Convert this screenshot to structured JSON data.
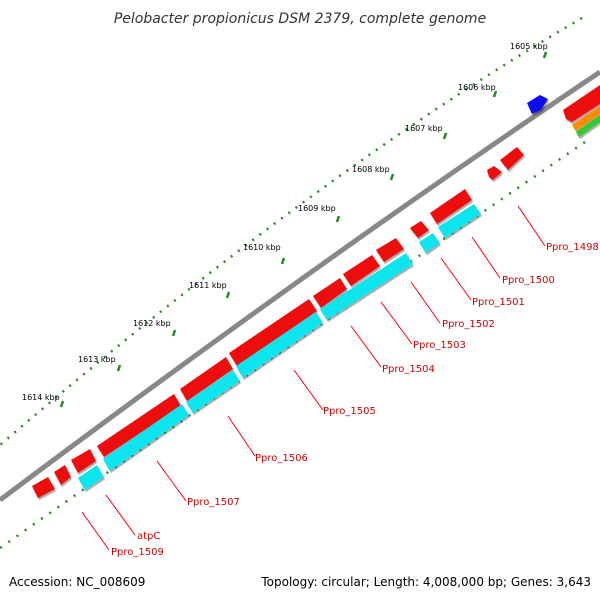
{
  "title": "Pelobacter propionicus DSM 2379, complete genome",
  "footer": {
    "accession": "Accession: NC_008609",
    "summary": "Topology: circular; Length: 4,008,000 bp; Genes: 3,643"
  },
  "ticks": [
    "1605 kbp",
    "1606 kbp",
    "1607 kbp",
    "1608 kbp",
    "1609 kbp",
    "1610 kbp",
    "1611 kbp",
    "1612 kbp",
    "1613 kbp",
    "1614 kbp"
  ],
  "genes": [
    "Ppro_1498",
    "Ppro_1500",
    "Ppro_1501",
    "Ppro_1502",
    "Ppro_1503",
    "Ppro_1504",
    "Ppro_1505",
    "Ppro_1506",
    "Ppro_1507",
    "atpC",
    "Ppro_1509"
  ],
  "colors": {
    "cds": "#ff0000",
    "cds_secondary": "#00ffff",
    "rna": "#0000ff",
    "label": "#cc0000",
    "leader": "#ff0000",
    "backbone": "#808080",
    "tick_ring": "#228b22",
    "orange_track": "#ff8c00",
    "green_track": "#33cc33"
  }
}
